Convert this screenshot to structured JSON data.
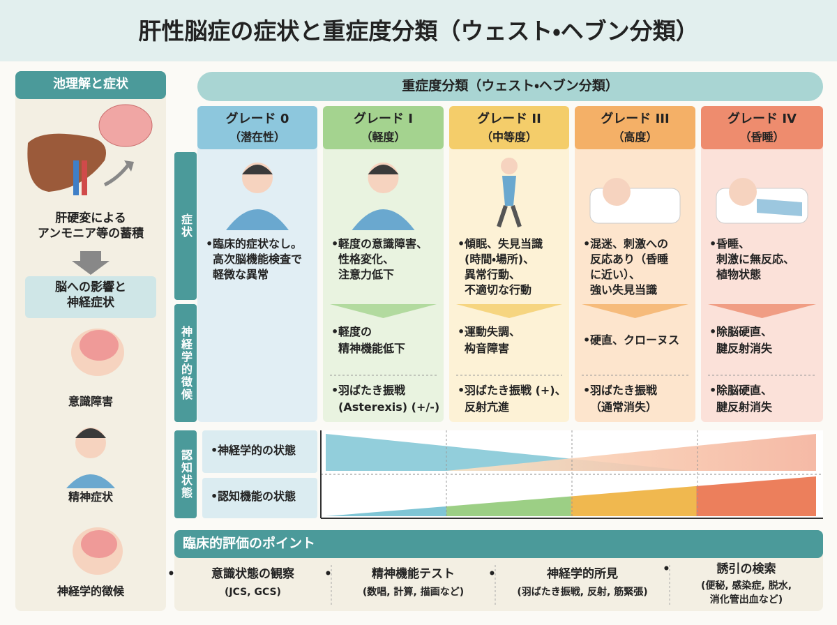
{
  "title": "肝性脳症の症状と重症度分類（ウェスト・ヘブン分類）",
  "left": {
    "header": "池理解と症状",
    "cause": [
      "肝硬変による",
      "アンモニア等の蓄積"
    ],
    "effect": [
      "脳への影響と",
      "神経症状"
    ],
    "items": [
      "意識障害",
      "精神症状",
      "神経学的徴候"
    ]
  },
  "main_header": "重症度分類（ウェスト・ヘブン分類）",
  "row_labels": {
    "symptoms": "症状",
    "neuro": "神経学的徴候",
    "cognitive": "認知状態"
  },
  "grades": [
    {
      "name": "グレード 0",
      "sub": "（潜在性）",
      "symptoms": [
        "臨床的症状なし。",
        "高次脳機能検査で",
        "軽微な異常"
      ]
    },
    {
      "name": "グレード I",
      "sub": "（軽度）",
      "symptoms": [
        "軽度の意識障害、",
        "性格変化、",
        "注意力低下"
      ],
      "neuro1": [
        "軽度の",
        "精神機能低下"
      ],
      "neuro2": [
        "羽ばたき振戦",
        "(Asterexis) (+/-)"
      ]
    },
    {
      "name": "グレード II",
      "sub": "（中等度）",
      "symptoms": [
        "傾眠、失見当識",
        "(時間・場所)、",
        "異常行動、",
        "不適切な行動"
      ],
      "neuro1": [
        "運動失調、",
        "构音障害"
      ],
      "neuro2": [
        "羽ばたき振戦 (+)、",
        "反射亢進"
      ]
    },
    {
      "name": "グレード III",
      "sub": "（高度）",
      "symptoms": [
        "混迷、刺激への",
        "反応あり（昏睡",
        "に近い）、",
        "強い失見当識"
      ],
      "neuro1": [
        "硬直、クローヌス"
      ],
      "neuro2": [
        "羽ばたき振戦",
        "（通常消失）"
      ]
    },
    {
      "name": "グレード IV",
      "sub": "（昏睡）",
      "symptoms": [
        "昏睡、",
        "刺激に無反応、",
        "植物状態"
      ],
      "neuro1": [
        "除脳硬直、",
        "腱反射消失"
      ],
      "neuro2": [
        "除脳硬直、",
        "腱反射消失"
      ]
    }
  ],
  "cognitive_rows": [
    "神経学的の状態",
    "認知機能の状態"
  ],
  "clinical": {
    "header": "臨床的評価のポイント",
    "items": [
      {
        "title": "意識状態の観察",
        "detail": [
          "(JCS, GCS)"
        ]
      },
      {
        "title": "精神機能テスト",
        "detail": [
          "(数唱, 計算, 描画など)"
        ]
      },
      {
        "title": "神経学的所見",
        "detail": [
          "(羽ばたき振戦, 反射, 筋緊張)"
        ]
      },
      {
        "title": "誘引の検索",
        "detail": [
          "(便秘, 感染症, 脱水,",
          "消化管出血など)"
        ]
      }
    ]
  }
}
